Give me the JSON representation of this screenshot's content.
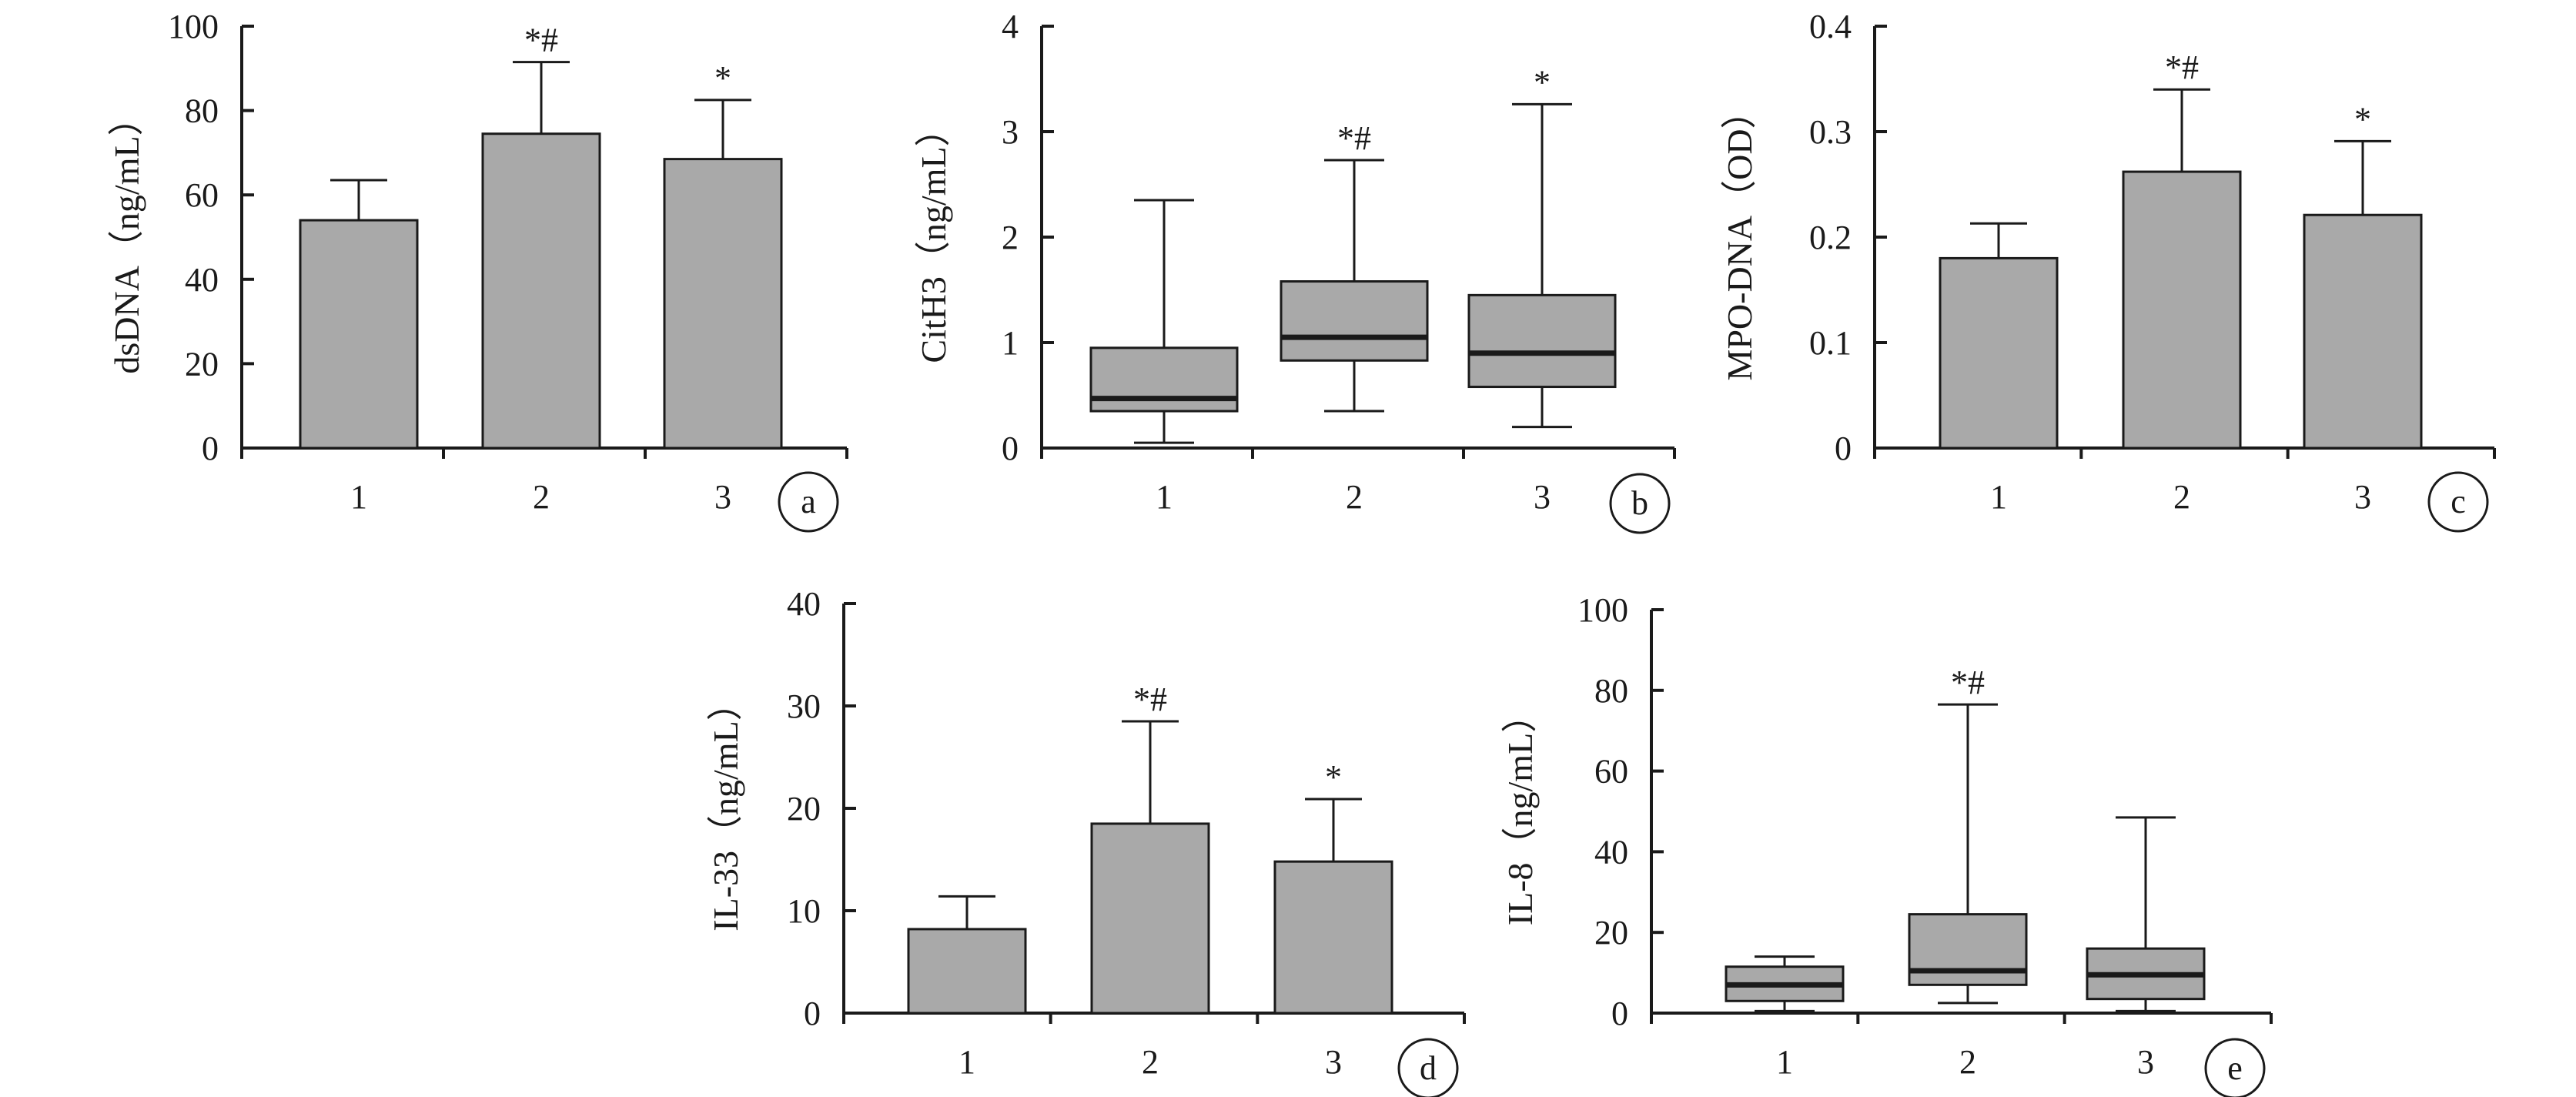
{
  "colors": {
    "fill": "#a9a9a9",
    "stroke": "#1a1a1a",
    "median": "#1a1a1a",
    "background": "#ffffff"
  },
  "chart_data": [
    {
      "panel": "a",
      "type": "bar",
      "ylabel": "dsDNA（ng/mL）",
      "ylim": [
        0,
        100
      ],
      "yticks": [
        0,
        20,
        40,
        60,
        80,
        100
      ],
      "categories": [
        "1",
        "2",
        "3"
      ],
      "values": [
        54,
        74.5,
        68.5
      ],
      "errors": [
        63.5,
        91.5,
        82.5
      ],
      "annotations": [
        "",
        "*#",
        "*"
      ],
      "grid": false,
      "legend": "none"
    },
    {
      "panel": "b",
      "type": "box",
      "ylabel": "CitH3（ng/mL）",
      "ylim": [
        0,
        4
      ],
      "yticks": [
        0,
        1,
        2,
        3,
        4
      ],
      "categories": [
        "1",
        "2",
        "3"
      ],
      "boxes": [
        {
          "min": 0.05,
          "q1": 0.35,
          "median": 0.47,
          "q3": 0.95,
          "max": 2.35
        },
        {
          "min": 0.35,
          "q1": 0.83,
          "median": 1.05,
          "q3": 1.58,
          "max": 2.73
        },
        {
          "min": 0.2,
          "q1": 0.58,
          "median": 0.9,
          "q3": 1.45,
          "max": 3.26
        }
      ],
      "annotations": [
        "",
        "*#",
        "*"
      ],
      "grid": false,
      "legend": "none"
    },
    {
      "panel": "c",
      "type": "bar",
      "ylabel": "MPO-DNA（OD）",
      "ylim": [
        0,
        0.4
      ],
      "yticks": [
        0,
        0.1,
        0.2,
        0.3,
        0.4
      ],
      "categories": [
        "1",
        "2",
        "3"
      ],
      "values": [
        0.18,
        0.262,
        0.221
      ],
      "errors": [
        0.213,
        0.34,
        0.291
      ],
      "annotations": [
        "",
        "*#",
        "*"
      ],
      "grid": false,
      "legend": "none"
    },
    {
      "panel": "d",
      "type": "bar",
      "ylabel": "IL-33（ng/mL）",
      "ylim": [
        0,
        40
      ],
      "yticks": [
        0,
        10,
        20,
        30,
        40
      ],
      "categories": [
        "1",
        "2",
        "3"
      ],
      "values": [
        8.2,
        18.5,
        14.8
      ],
      "errors": [
        11.4,
        28.5,
        20.9
      ],
      "annotations": [
        "",
        "*#",
        "*"
      ],
      "grid": false,
      "legend": "none"
    },
    {
      "panel": "e",
      "type": "box",
      "ylabel": "IL-8（ng/mL）",
      "ylim": [
        0,
        100
      ],
      "yticks": [
        0,
        20,
        40,
        60,
        80,
        100
      ],
      "categories": [
        "1",
        "2",
        "3"
      ],
      "boxes": [
        {
          "min": 0.5,
          "q1": 3,
          "median": 7,
          "q3": 11.5,
          "max": 14
        },
        {
          "min": 2.5,
          "q1": 7,
          "median": 10.5,
          "q3": 24.5,
          "max": 76.5
        },
        {
          "min": 0.5,
          "q1": 3.5,
          "median": 9.5,
          "q3": 16,
          "max": 48.5
        }
      ],
      "annotations": [
        "*#",
        "",
        ""
      ],
      "annotation_index": [
        1
      ],
      "grid": false,
      "legend": "none"
    }
  ]
}
